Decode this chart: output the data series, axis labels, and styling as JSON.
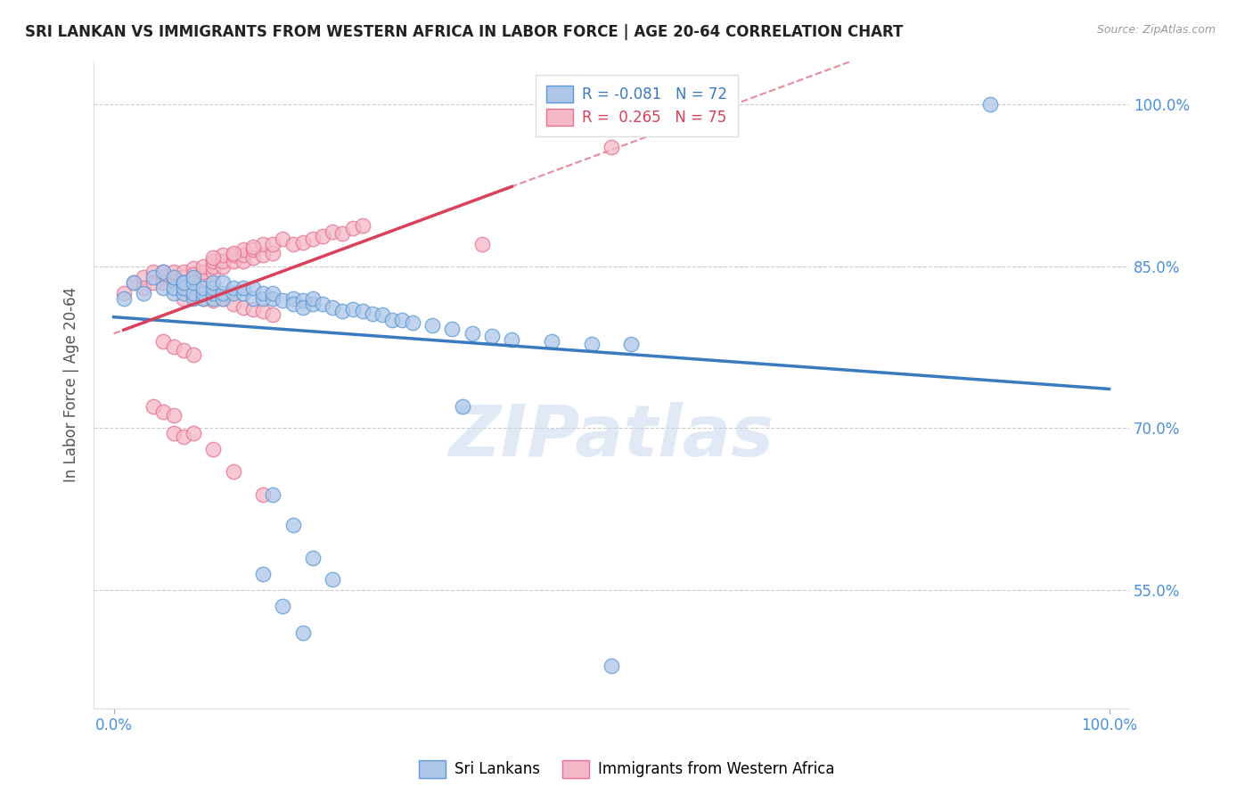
{
  "title": "SRI LANKAN VS IMMIGRANTS FROM WESTERN AFRICA IN LABOR FORCE | AGE 20-64 CORRELATION CHART",
  "source_text": "Source: ZipAtlas.com",
  "ylabel": "In Labor Force | Age 20-64",
  "xlim": [
    -0.02,
    1.02
  ],
  "ylim": [
    0.44,
    1.04
  ],
  "xtick_positions": [
    0.0,
    1.0
  ],
  "xticklabels": [
    "0.0%",
    "100.0%"
  ],
  "ytick_positions": [
    0.55,
    0.7,
    0.85,
    1.0
  ],
  "ytick_labels": [
    "55.0%",
    "70.0%",
    "85.0%",
    "100.0%"
  ],
  "blue_R": -0.081,
  "blue_N": 72,
  "pink_R": 0.265,
  "pink_N": 75,
  "blue_color": "#aec6e8",
  "pink_color": "#f5b8c8",
  "blue_edge_color": "#5b9bd5",
  "pink_edge_color": "#e87090",
  "blue_line_color": "#3a7abf",
  "pink_line_color": "#d9405a",
  "legend_blue_label": "Sri Lankans",
  "legend_pink_label": "Immigrants from Western Africa",
  "watermark": "ZIPatlas",
  "blue_scatter_x": [
    0.01,
    0.02,
    0.03,
    0.04,
    0.05,
    0.05,
    0.06,
    0.06,
    0.06,
    0.07,
    0.07,
    0.07,
    0.07,
    0.08,
    0.08,
    0.08,
    0.08,
    0.09,
    0.09,
    0.09,
    0.1,
    0.1,
    0.1,
    0.1,
    0.11,
    0.11,
    0.11,
    0.12,
    0.12,
    0.13,
    0.13,
    0.14,
    0.14,
    0.15,
    0.15,
    0.16,
    0.16,
    0.17,
    0.18,
    0.18,
    0.19,
    0.19,
    0.2,
    0.2,
    0.21,
    0.22,
    0.23,
    0.24,
    0.25,
    0.26,
    0.27,
    0.28,
    0.29,
    0.3,
    0.32,
    0.34,
    0.36,
    0.38,
    0.4,
    0.44,
    0.48,
    0.52,
    0.16,
    0.18,
    0.2,
    0.22,
    0.15,
    0.17,
    0.19,
    0.35,
    0.5,
    0.88
  ],
  "blue_scatter_y": [
    0.82,
    0.835,
    0.825,
    0.84,
    0.83,
    0.845,
    0.825,
    0.83,
    0.84,
    0.825,
    0.835,
    0.83,
    0.835,
    0.82,
    0.825,
    0.835,
    0.84,
    0.82,
    0.825,
    0.83,
    0.82,
    0.825,
    0.83,
    0.835,
    0.82,
    0.825,
    0.835,
    0.825,
    0.83,
    0.825,
    0.83,
    0.82,
    0.83,
    0.82,
    0.825,
    0.82,
    0.825,
    0.818,
    0.82,
    0.815,
    0.818,
    0.812,
    0.815,
    0.82,
    0.815,
    0.812,
    0.808,
    0.81,
    0.808,
    0.806,
    0.805,
    0.8,
    0.8,
    0.798,
    0.795,
    0.792,
    0.788,
    0.785,
    0.782,
    0.78,
    0.778,
    0.778,
    0.638,
    0.61,
    0.58,
    0.56,
    0.565,
    0.535,
    0.51,
    0.72,
    0.48,
    1.0
  ],
  "pink_scatter_x": [
    0.01,
    0.02,
    0.03,
    0.03,
    0.04,
    0.04,
    0.05,
    0.05,
    0.05,
    0.06,
    0.06,
    0.06,
    0.07,
    0.07,
    0.07,
    0.08,
    0.08,
    0.08,
    0.09,
    0.09,
    0.09,
    0.1,
    0.1,
    0.1,
    0.11,
    0.11,
    0.11,
    0.12,
    0.12,
    0.13,
    0.13,
    0.13,
    0.14,
    0.14,
    0.15,
    0.15,
    0.16,
    0.16,
    0.17,
    0.18,
    0.19,
    0.2,
    0.21,
    0.22,
    0.23,
    0.24,
    0.25,
    0.1,
    0.12,
    0.14,
    0.07,
    0.08,
    0.09,
    0.1,
    0.11,
    0.12,
    0.13,
    0.14,
    0.15,
    0.16,
    0.05,
    0.06,
    0.07,
    0.08,
    0.04,
    0.05,
    0.06,
    0.1,
    0.12,
    0.15,
    0.06,
    0.07,
    0.08,
    0.37,
    0.5
  ],
  "pink_scatter_y": [
    0.825,
    0.835,
    0.84,
    0.83,
    0.845,
    0.835,
    0.84,
    0.835,
    0.845,
    0.835,
    0.84,
    0.845,
    0.84,
    0.835,
    0.845,
    0.84,
    0.848,
    0.842,
    0.838,
    0.845,
    0.85,
    0.845,
    0.85,
    0.855,
    0.85,
    0.855,
    0.86,
    0.855,
    0.86,
    0.855,
    0.86,
    0.865,
    0.858,
    0.865,
    0.86,
    0.87,
    0.862,
    0.87,
    0.875,
    0.87,
    0.872,
    0.875,
    0.878,
    0.882,
    0.88,
    0.885,
    0.888,
    0.858,
    0.862,
    0.868,
    0.82,
    0.822,
    0.82,
    0.818,
    0.82,
    0.815,
    0.812,
    0.81,
    0.808,
    0.805,
    0.78,
    0.775,
    0.772,
    0.768,
    0.72,
    0.715,
    0.712,
    0.68,
    0.66,
    0.638,
    0.695,
    0.692,
    0.695,
    0.87,
    0.96
  ]
}
